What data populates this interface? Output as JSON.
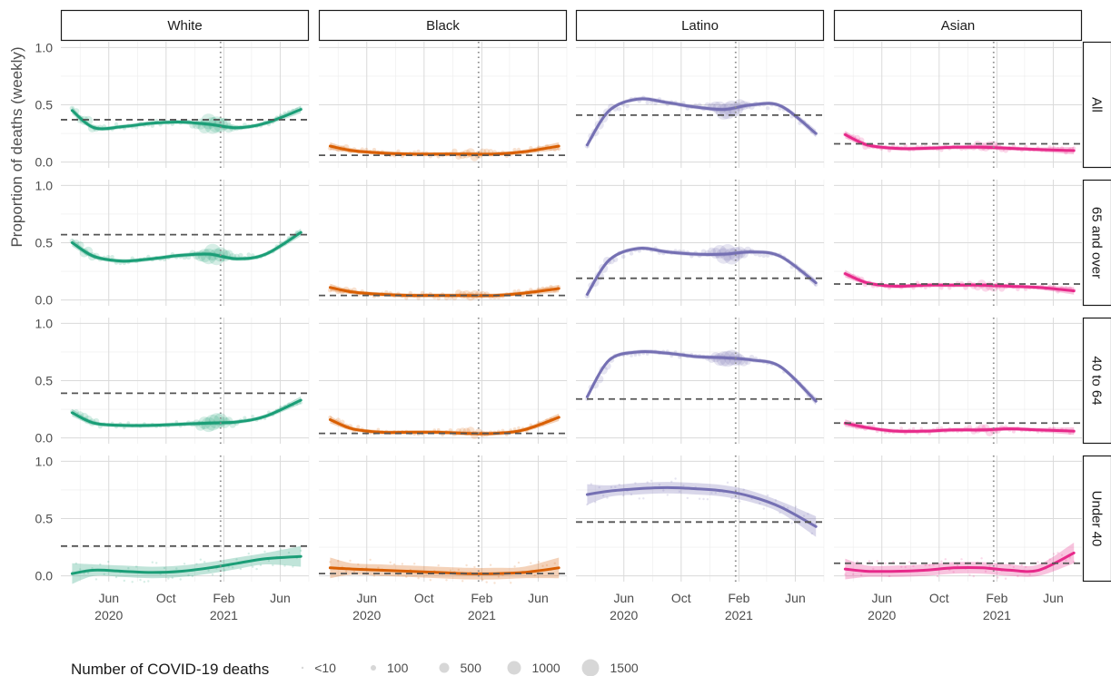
{
  "chart_data": {
    "type": "line",
    "ylabel": "Proportion of deaths (weekly)",
    "ylim": [
      -0.05,
      1.05
    ],
    "y_ticks": [
      0.0,
      0.5,
      1.0
    ],
    "y_tick_labels": [
      "0.0",
      "0.5",
      "1.0"
    ],
    "x_axis": "date",
    "x_ticks": [
      {
        "date": "2020-06-01",
        "month": "Jun",
        "year": "2020"
      },
      {
        "date": "2020-10-01",
        "month": "Oct",
        "year": ""
      },
      {
        "date": "2021-02-01",
        "month": "Feb",
        "year": "2021"
      },
      {
        "date": "2021-06-01",
        "month": "Jun",
        "year": ""
      }
    ],
    "x_range": [
      "2020-02-20",
      "2021-08-01"
    ],
    "vertical_reference_date": "2021-01-25",
    "columns": [
      {
        "label": "White",
        "color": "#1b9e77"
      },
      {
        "label": "Black",
        "color": "#d95f02"
      },
      {
        "label": "Latino",
        "color": "#7570b3"
      },
      {
        "label": "Asian",
        "color": "#e7298a"
      }
    ],
    "rows": [
      "All",
      "65 and over",
      "40 to 64",
      "Under 40"
    ],
    "x_dates": [
      "2020-03-15",
      "2020-05-01",
      "2020-07-01",
      "2020-09-01",
      "2020-11-01",
      "2021-01-01",
      "2021-03-01",
      "2021-05-01",
      "2021-07-15"
    ],
    "panels": [
      {
        "row": "All",
        "column": "White",
        "reference": 0.37,
        "trend": [
          0.45,
          0.3,
          0.31,
          0.34,
          0.35,
          0.33,
          0.3,
          0.34,
          0.46
        ]
      },
      {
        "row": "All",
        "column": "Black",
        "reference": 0.06,
        "trend": [
          0.14,
          0.1,
          0.08,
          0.07,
          0.07,
          0.07,
          0.07,
          0.09,
          0.14
        ]
      },
      {
        "row": "All",
        "column": "Latino",
        "reference": 0.41,
        "trend": [
          0.15,
          0.45,
          0.55,
          0.52,
          0.48,
          0.46,
          0.5,
          0.49,
          0.25
        ]
      },
      {
        "row": "All",
        "column": "Asian",
        "reference": 0.16,
        "trend": [
          0.24,
          0.15,
          0.12,
          0.12,
          0.13,
          0.13,
          0.12,
          0.11,
          0.1
        ]
      },
      {
        "row": "65 and over",
        "column": "White",
        "reference": 0.57,
        "trend": [
          0.5,
          0.38,
          0.34,
          0.36,
          0.39,
          0.4,
          0.36,
          0.4,
          0.59
        ]
      },
      {
        "row": "65 and over",
        "column": "Black",
        "reference": 0.04,
        "trend": [
          0.11,
          0.07,
          0.05,
          0.04,
          0.04,
          0.04,
          0.04,
          0.06,
          0.1
        ]
      },
      {
        "row": "65 and over",
        "column": "Latino",
        "reference": 0.19,
        "trend": [
          0.05,
          0.35,
          0.45,
          0.42,
          0.4,
          0.4,
          0.42,
          0.38,
          0.15
        ]
      },
      {
        "row": "65 and over",
        "column": "Asian",
        "reference": 0.14,
        "trend": [
          0.23,
          0.15,
          0.12,
          0.13,
          0.13,
          0.13,
          0.12,
          0.11,
          0.08
        ]
      },
      {
        "row": "40 to 64",
        "column": "White",
        "reference": 0.39,
        "trend": [
          0.22,
          0.13,
          0.11,
          0.11,
          0.12,
          0.13,
          0.14,
          0.19,
          0.33
        ]
      },
      {
        "row": "40 to 64",
        "column": "Black",
        "reference": 0.04,
        "trend": [
          0.16,
          0.08,
          0.05,
          0.05,
          0.05,
          0.04,
          0.04,
          0.07,
          0.18
        ]
      },
      {
        "row": "40 to 64",
        "column": "Latino",
        "reference": 0.34,
        "trend": [
          0.36,
          0.68,
          0.75,
          0.74,
          0.71,
          0.7,
          0.68,
          0.62,
          0.32
        ]
      },
      {
        "row": "40 to 64",
        "column": "Asian",
        "reference": 0.13,
        "trend": [
          0.13,
          0.09,
          0.06,
          0.06,
          0.07,
          0.07,
          0.08,
          0.07,
          0.06
        ]
      },
      {
        "row": "Under 40",
        "column": "White",
        "reference": 0.26,
        "trend": [
          0.02,
          0.05,
          0.04,
          0.03,
          0.04,
          0.07,
          0.11,
          0.15,
          0.17
        ]
      },
      {
        "row": "Under 40",
        "column": "Black",
        "reference": 0.02,
        "trend": [
          0.07,
          0.06,
          0.05,
          0.04,
          0.03,
          0.02,
          0.02,
          0.03,
          0.07
        ]
      },
      {
        "row": "Under 40",
        "column": "Latino",
        "reference": 0.47,
        "trend": [
          0.71,
          0.74,
          0.76,
          0.77,
          0.76,
          0.74,
          0.69,
          0.6,
          0.43
        ]
      },
      {
        "row": "Under 40",
        "column": "Asian",
        "reference": 0.11,
        "trend": [
          0.06,
          0.04,
          0.04,
          0.05,
          0.07,
          0.07,
          0.05,
          0.05,
          0.2
        ]
      }
    ],
    "legend": {
      "title": "Number of COVID-19 deaths",
      "position": "bottom",
      "entries": [
        "<10",
        "100",
        "500",
        "1000",
        "1500"
      ],
      "values": [
        10,
        100,
        500,
        1000,
        1500
      ]
    },
    "grid": true
  }
}
